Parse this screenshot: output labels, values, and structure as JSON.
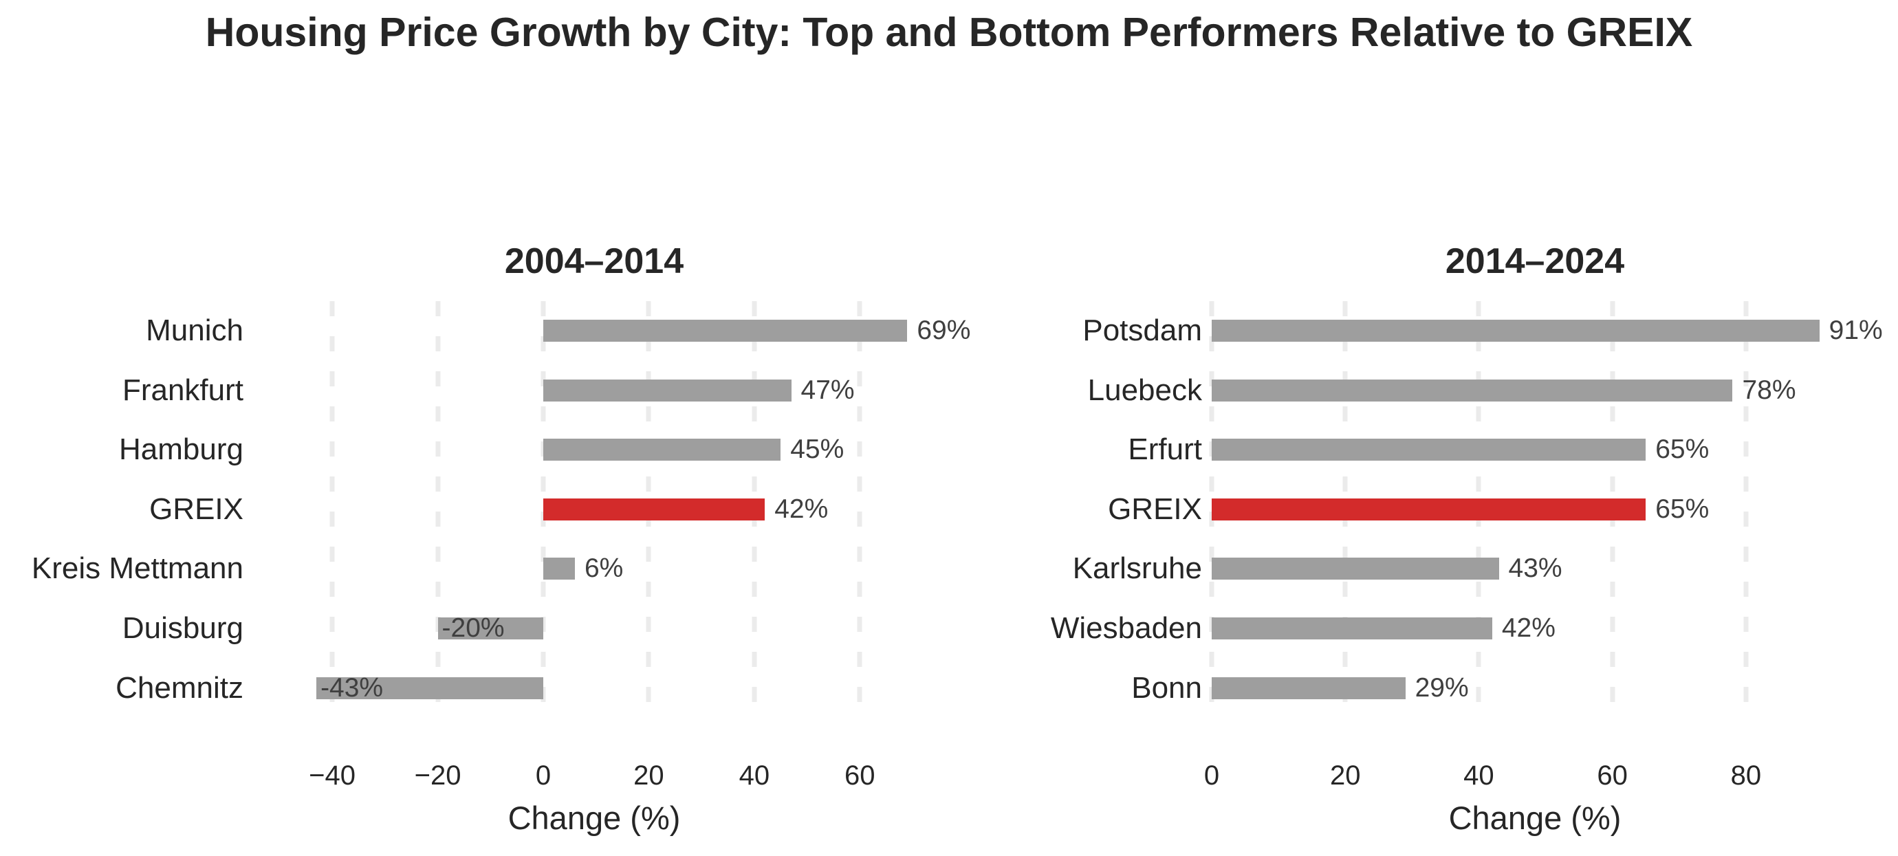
{
  "page": {
    "title": "Housing Price Growth by City: Top and Bottom Performers Relative to GREIX"
  },
  "colors": {
    "bar_gray": "#9e9e9e",
    "bar_red": "#d32b2b",
    "grid": "#ebebeb",
    "value_text": "#3f3f3f",
    "label_text": "#262626",
    "title_text": "#262626"
  },
  "chart_data": [
    {
      "type": "bar",
      "orientation": "horizontal",
      "title": "2004–2014",
      "xlabel": "Change (%)",
      "xlim": [
        -55,
        74.3
      ],
      "xticks": [
        -40,
        -20,
        0,
        20,
        40,
        60
      ],
      "xtick_labels": [
        "−40",
        "−20",
        "0",
        "20",
        "40",
        "60"
      ],
      "grid": true,
      "legend": null,
      "categories": [
        "Munich",
        "Frankfurt",
        "Hamburg",
        "GREIX",
        "Kreis Mettmann",
        "Duisburg",
        "Chemnitz"
      ],
      "values": [
        69,
        47,
        45,
        42,
        6,
        -20,
        -43
      ],
      "value_labels": [
        "69%",
        "47%",
        "45%",
        "42%",
        "6%",
        "-20%",
        "-43%"
      ],
      "highlight": "GREIX",
      "highlight_index": 3
    },
    {
      "type": "bar",
      "orientation": "horizontal",
      "title": "2014–2024",
      "xlabel": "Change (%)",
      "xlim": [
        0,
        96.8
      ],
      "xticks": [
        0,
        20,
        40,
        60,
        80
      ],
      "xtick_labels": [
        "0",
        "20",
        "40",
        "60",
        "80"
      ],
      "grid": true,
      "legend": null,
      "categories": [
        "Potsdam",
        "Luebeck",
        "Erfurt",
        "GREIX",
        "Karlsruhe",
        "Wiesbaden",
        "Bonn"
      ],
      "values": [
        91,
        78,
        65,
        65,
        43,
        42,
        29
      ],
      "value_labels": [
        "91%",
        "78%",
        "65%",
        "65%",
        "43%",
        "42%",
        "29%"
      ],
      "highlight": "GREIX",
      "highlight_index": 3
    }
  ]
}
